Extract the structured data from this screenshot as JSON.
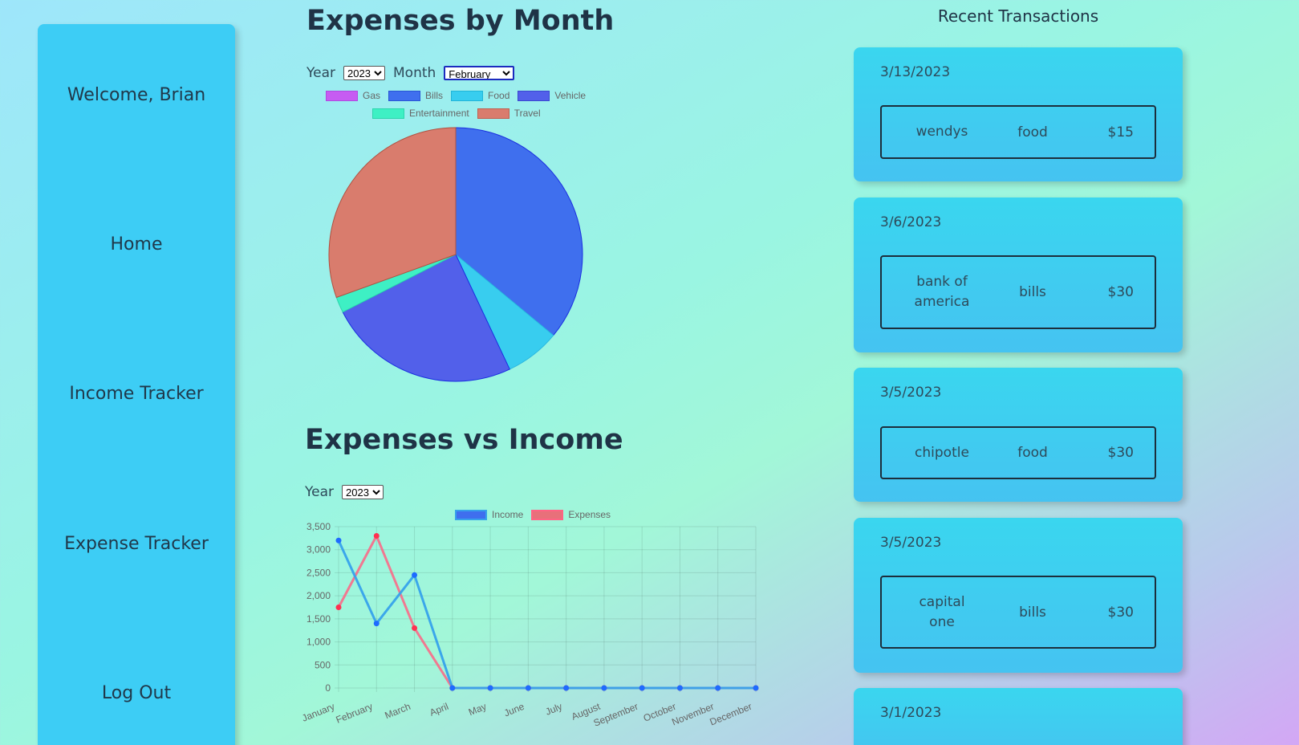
{
  "sidebar": {
    "welcome": "Welcome, Brian",
    "items": [
      {
        "label": "Home"
      },
      {
        "label": "Income Tracker"
      },
      {
        "label": "Expense Tracker"
      },
      {
        "label": "Log Out"
      }
    ]
  },
  "expenses_by_month": {
    "title": "Expenses by Month",
    "year_label": "Year",
    "year_value": "2023",
    "month_label": "Month",
    "month_value": "February"
  },
  "expenses_vs_income": {
    "title": "Expenses vs Income",
    "year_label": "Year",
    "year_value": "2023"
  },
  "recent": {
    "title": "Recent Transactions",
    "transactions": [
      {
        "date": "3/13/2023",
        "name": "wendys",
        "category": "food",
        "amount": "$15"
      },
      {
        "date": "3/6/2023",
        "name": "bank of america",
        "category": "bills",
        "amount": "$30"
      },
      {
        "date": "3/5/2023",
        "name": "chipotle",
        "category": "food",
        "amount": "$30"
      },
      {
        "date": "3/5/2023",
        "name": "capital one",
        "category": "bills",
        "amount": "$30"
      },
      {
        "date": "3/1/2023",
        "name": "",
        "category": "",
        "amount": ""
      }
    ]
  },
  "colors": {
    "gas": "#c65cf2",
    "bills": "#3f6fee",
    "food": "#38cdef",
    "vehicle": "#5260ea",
    "entertainment": "#3ef0c4",
    "travel": "#d97c6d",
    "income": "#36a2eb",
    "expenses": "#ff6384"
  },
  "chart_data": [
    {
      "type": "pie",
      "legend": [
        "Gas",
        "Bills",
        "Food",
        "Vehicle",
        "Entertainment",
        "Travel"
      ],
      "values": [
        0,
        36,
        7,
        24.5,
        2,
        30.5
      ],
      "legend_position": "top"
    },
    {
      "type": "line",
      "categories": [
        "January",
        "February",
        "March",
        "April",
        "May",
        "June",
        "July",
        "August",
        "September",
        "October",
        "November",
        "December"
      ],
      "series": [
        {
          "name": "Income",
          "values": [
            3200,
            1400,
            2450,
            0,
            0,
            0,
            0,
            0,
            0,
            0,
            0,
            0
          ]
        },
        {
          "name": "Expenses",
          "values": [
            1750,
            3300,
            1300,
            0,
            0,
            0,
            0,
            0,
            0,
            0,
            0,
            0
          ]
        }
      ],
      "ylim": [
        0,
        3500
      ],
      "yticks": [
        "3,500",
        "3,000",
        "2,500",
        "2,000",
        "1,500",
        "1,000",
        "500",
        "0"
      ],
      "grid": true,
      "legend_position": "top"
    }
  ]
}
